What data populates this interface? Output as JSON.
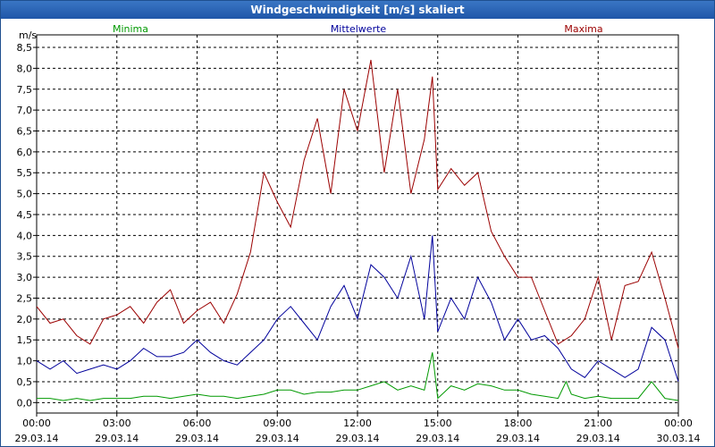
{
  "window": {
    "title": "Windgeschwindigkeit [m/s] skaliert"
  },
  "colors": {
    "minima": "#009900",
    "mittelwerte": "#00009b",
    "maxima": "#9b0000",
    "grid": "#000000",
    "title_bg": "#2a63b4"
  },
  "chart_data": {
    "type": "line",
    "title": "Windgeschwindigkeit [m/s] skaliert",
    "ylabel": "m/s",
    "xlabel": "",
    "ylim": [
      -0.25,
      8.8
    ],
    "xlim": [
      0,
      24
    ],
    "grid": true,
    "y_ticks": [
      "0,0",
      "0,5",
      "1,0",
      "1,5",
      "2,0",
      "2,5",
      "3,0",
      "3,5",
      "4,0",
      "4,5",
      "5,0",
      "5,5",
      "6,0",
      "6,5",
      "7,0",
      "7,5",
      "8,0",
      "8,5"
    ],
    "x_ticks": [
      {
        "time": "00:00",
        "date": "29.03.14"
      },
      {
        "time": "03:00",
        "date": "29.03.14"
      },
      {
        "time": "06:00",
        "date": "29.03.14"
      },
      {
        "time": "09:00",
        "date": "29.03.14"
      },
      {
        "time": "12:00",
        "date": "29.03.14"
      },
      {
        "time": "15:00",
        "date": "29.03.14"
      },
      {
        "time": "18:00",
        "date": "29.03.14"
      },
      {
        "time": "21:00",
        "date": "29.03.14"
      },
      {
        "time": "00:00",
        "date": "30.03.14"
      }
    ],
    "legend": [
      "Minima",
      "Mittelwerte",
      "Maxima"
    ],
    "series": [
      {
        "name": "Minima",
        "x": [
          0,
          0.5,
          1,
          1.5,
          2,
          2.5,
          3,
          3.5,
          4,
          4.5,
          5,
          5.5,
          6,
          6.5,
          7,
          7.5,
          8,
          8.5,
          9,
          9.5,
          10,
          10.5,
          11,
          11.5,
          12,
          12.5,
          13,
          13.5,
          14,
          14.5,
          14.8,
          15,
          15.5,
          16,
          16.5,
          17,
          17.5,
          18,
          18.5,
          19,
          19.5,
          19.8,
          20,
          20.5,
          21,
          21.5,
          22,
          22.5,
          23,
          23.5,
          24
        ],
        "values": [
          0.1,
          0.1,
          0.05,
          0.1,
          0.05,
          0.1,
          0.1,
          0.1,
          0.15,
          0.15,
          0.1,
          0.15,
          0.2,
          0.15,
          0.15,
          0.1,
          0.15,
          0.2,
          0.3,
          0.3,
          0.2,
          0.25,
          0.25,
          0.3,
          0.3,
          0.4,
          0.5,
          0.3,
          0.4,
          0.3,
          1.2,
          0.1,
          0.4,
          0.3,
          0.45,
          0.4,
          0.3,
          0.3,
          0.2,
          0.15,
          0.1,
          0.5,
          0.2,
          0.1,
          0.15,
          0.1,
          0.1,
          0.1,
          0.5,
          0.1,
          0.05
        ]
      },
      {
        "name": "Mittelwerte",
        "x": [
          0,
          0.5,
          1,
          1.5,
          2,
          2.5,
          3,
          3.5,
          4,
          4.5,
          5,
          5.5,
          6,
          6.5,
          7,
          7.5,
          8,
          8.5,
          9,
          9.5,
          10,
          10.5,
          11,
          11.5,
          12,
          12.5,
          13,
          13.5,
          14,
          14.5,
          14.8,
          15,
          15.5,
          16,
          16.5,
          17,
          17.5,
          18,
          18.5,
          19,
          19.5,
          20,
          20.5,
          21,
          21.5,
          22,
          22.5,
          23,
          23.5,
          24
        ],
        "values": [
          1.0,
          0.8,
          1.0,
          0.7,
          0.8,
          0.9,
          0.8,
          1.0,
          1.3,
          1.1,
          1.1,
          1.2,
          1.5,
          1.2,
          1.0,
          0.9,
          1.2,
          1.5,
          2.0,
          2.3,
          1.9,
          1.5,
          2.3,
          2.8,
          2.0,
          3.3,
          3.0,
          2.5,
          3.5,
          2.0,
          4.0,
          1.7,
          2.5,
          2.0,
          3.0,
          2.4,
          1.5,
          2.0,
          1.5,
          1.6,
          1.3,
          0.8,
          0.6,
          1.0,
          0.8,
          0.6,
          0.8,
          1.8,
          1.5,
          0.5
        ]
      },
      {
        "name": "Maxima",
        "x": [
          0,
          0.5,
          1,
          1.5,
          2,
          2.5,
          3,
          3.5,
          4,
          4.5,
          5,
          5.5,
          6,
          6.5,
          7,
          7.5,
          8,
          8.5,
          9,
          9.5,
          10,
          10.5,
          11,
          11.5,
          12,
          12.5,
          13,
          13.5,
          14,
          14.5,
          14.8,
          15,
          15.5,
          16,
          16.5,
          17,
          17.5,
          18,
          18.5,
          19,
          19.5,
          20,
          20.5,
          21,
          21.5,
          22,
          22.5,
          23,
          23.5,
          24
        ],
        "values": [
          2.3,
          1.9,
          2.0,
          1.6,
          1.4,
          2.0,
          2.1,
          2.3,
          1.9,
          2.4,
          2.7,
          1.9,
          2.2,
          2.4,
          1.9,
          2.6,
          3.6,
          5.5,
          4.8,
          4.2,
          5.8,
          6.8,
          5.0,
          7.5,
          6.5,
          8.2,
          5.5,
          7.5,
          5.0,
          6.3,
          7.8,
          5.1,
          5.6,
          5.2,
          5.5,
          4.1,
          3.5,
          3.0,
          3.0,
          2.2,
          1.4,
          1.6,
          2.0,
          3.0,
          1.5,
          2.8,
          2.9,
          3.6,
          2.5,
          1.3
        ]
      }
    ]
  }
}
